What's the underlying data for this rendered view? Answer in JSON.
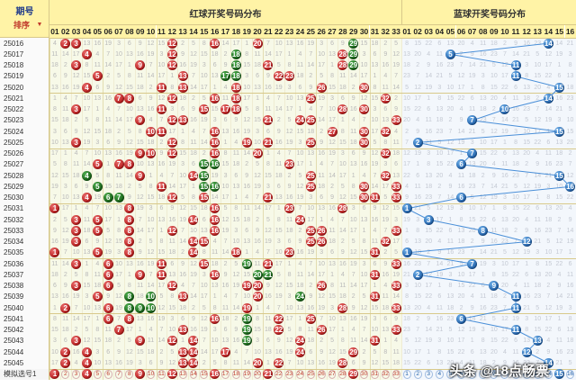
{
  "header": {
    "issue_label": "期号",
    "sort_label": "排序",
    "red_title": "红球开奖号码分布",
    "blue_title": "蓝球开奖号码分布"
  },
  "red_columns": [
    "01",
    "02",
    "03",
    "04",
    "05",
    "06",
    "07",
    "08",
    "09",
    "10",
    "11",
    "12",
    "13",
    "14",
    "15",
    "16",
    "17",
    "18",
    "19",
    "20",
    "21",
    "22",
    "23",
    "24",
    "25",
    "26",
    "27",
    "28",
    "29",
    "30",
    "31",
    "32",
    "33"
  ],
  "blue_columns": [
    "01",
    "02",
    "03",
    "04",
    "05",
    "06",
    "07",
    "08",
    "09",
    "10",
    "11",
    "12",
    "13",
    "14",
    "15",
    "16"
  ],
  "rows": [
    {
      "issue": "25016",
      "red": [
        2,
        3,
        12,
        16,
        20,
        29
      ],
      "green": [
        29
      ],
      "blue": 14
    },
    {
      "issue": "25017",
      "red": [
        4,
        12,
        18,
        28,
        29
      ],
      "green": [
        18,
        29
      ],
      "blue": 5
    },
    {
      "issue": "25018",
      "red": [
        3,
        9,
        12,
        18,
        21,
        28,
        29
      ],
      "green": [
        18,
        29
      ],
      "blue": 11
    },
    {
      "issue": "25019",
      "red": [
        5,
        13,
        17,
        18,
        22,
        23
      ],
      "green": [
        17,
        18
      ],
      "blue": 11
    },
    {
      "issue": "25020",
      "red": [
        4,
        11,
        13,
        18,
        26,
        30
      ],
      "green": [],
      "blue": 15
    },
    {
      "issue": "25021",
      "red": [
        7,
        8,
        12,
        16,
        18,
        25,
        32
      ],
      "green": [],
      "blue": 14
    },
    {
      "issue": "25022",
      "red": [
        3,
        11,
        15,
        17,
        18,
        28,
        30
      ],
      "green": [],
      "blue": 10
    },
    {
      "issue": "25023",
      "red": [
        9,
        12,
        13,
        21,
        24,
        25,
        33
      ],
      "green": [],
      "blue": 7
    },
    {
      "issue": "25024",
      "red": [
        10,
        11,
        16,
        27,
        30,
        32
      ],
      "green": [],
      "blue": 15
    },
    {
      "issue": "25025",
      "red": [
        3,
        12,
        16,
        19,
        21,
        25,
        30
      ],
      "green": [],
      "blue": 2
    },
    {
      "issue": "25026",
      "red": [
        9,
        10,
        12,
        16,
        20,
        32
      ],
      "green": [],
      "blue": 7
    },
    {
      "issue": "25027",
      "red": [
        5,
        7,
        8,
        15,
        16,
        23
      ],
      "green": [
        15,
        16
      ],
      "blue": 6
    },
    {
      "issue": "25028",
      "red": [
        4,
        9,
        14,
        15,
        25,
        32
      ],
      "green": [
        4,
        15
      ],
      "blue": 15
    },
    {
      "issue": "25029",
      "red": [
        5,
        11,
        15,
        16,
        25,
        30,
        33
      ],
      "green": [
        5,
        15,
        16
      ],
      "blue": 16
    },
    {
      "issue": "25030",
      "red": [
        4,
        6,
        7,
        12,
        15,
        21,
        30,
        31,
        33
      ],
      "green": [
        6,
        7
      ],
      "blue": 6
    },
    {
      "issue": "25031",
      "red": [
        1,
        8,
        16,
        23,
        28
      ],
      "green": [],
      "blue": 1
    },
    {
      "issue": "25032",
      "red": [
        3,
        5,
        8,
        14,
        16,
        24
      ],
      "green": [],
      "blue": 3
    },
    {
      "issue": "25033",
      "red": [
        3,
        5,
        8,
        12,
        16,
        25,
        26,
        33
      ],
      "green": [],
      "blue": 8
    },
    {
      "issue": "25034",
      "red": [
        3,
        8,
        14,
        15,
        25,
        26,
        32
      ],
      "green": [],
      "blue": 12
    },
    {
      "issue": "25035",
      "red": [
        1,
        5,
        8,
        14,
        18,
        23,
        31
      ],
      "green": [],
      "blue": 1
    },
    {
      "issue": "25036",
      "red": [
        3,
        6,
        11,
        15,
        19,
        21,
        33
      ],
      "green": [
        19
      ],
      "blue": 7
    },
    {
      "issue": "25037",
      "red": [
        6,
        9,
        11,
        16,
        20,
        21,
        31
      ],
      "green": [
        20,
        21
      ],
      "blue": 2
    },
    {
      "issue": "25038",
      "red": [
        3,
        6,
        12,
        19,
        20,
        26,
        33
      ],
      "green": [],
      "blue": 9
    },
    {
      "issue": "25039",
      "red": [
        5,
        8,
        10,
        13,
        20,
        24,
        31
      ],
      "green": [
        8,
        10,
        24
      ],
      "blue": 11
    },
    {
      "issue": "25040",
      "red": [
        2,
        6,
        8,
        9,
        10,
        19,
        28,
        33
      ],
      "green": [
        8,
        9,
        10
      ],
      "blue": 11
    },
    {
      "issue": "25041",
      "red": [
        6,
        8,
        16,
        19,
        22,
        25
      ],
      "green": [
        19
      ],
      "blue": 6
    },
    {
      "issue": "25042",
      "red": [
        7,
        13,
        19,
        22,
        26,
        33
      ],
      "green": [
        19
      ],
      "blue": 11
    },
    {
      "issue": "25043",
      "red": [
        3,
        9,
        12,
        14,
        19,
        24,
        31
      ],
      "green": [
        19
      ],
      "blue": 13
    },
    {
      "issue": "25044",
      "red": [
        2,
        4,
        13,
        14,
        17,
        24,
        29
      ],
      "green": [],
      "blue": 12
    },
    {
      "issue": "25045",
      "red": [
        2,
        4,
        13,
        14,
        20,
        22,
        28
      ],
      "green": [],
      "blue": 14
    },
    {
      "issue": "模拟选号1",
      "red": [
        1,
        4,
        9,
        12,
        16,
        21,
        29
      ],
      "green": [],
      "blue": 15
    }
  ],
  "watermark": "头条 @18点畅票",
  "colors": {
    "red": "#b71c1c",
    "green": "#155d15",
    "blue": "#1f5fa8",
    "header_bg": "#fff3a6",
    "red_area_bg": "#f7f9e8",
    "blue_area_bg": "#f3f7fc",
    "title_red": "#c0392b",
    "title_blue": "#1f5fa8"
  }
}
